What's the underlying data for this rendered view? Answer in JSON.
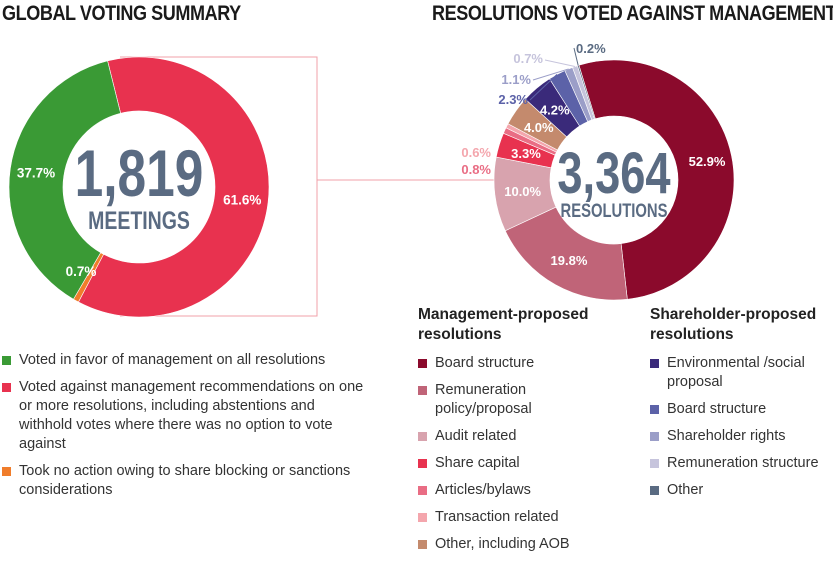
{
  "headings": {
    "left": "GLOBAL VOTING SUMMARY",
    "right": "RESOLUTIONS VOTED AGAINST MANAGEMENT"
  },
  "centers": {
    "left": {
      "number": "1,819",
      "unit": "MEETINGS"
    },
    "right": {
      "number": "3,364",
      "unit": "RESOLUTIONS"
    }
  },
  "left_legend": [
    {
      "label": "Voted in favor of management on all resolutions",
      "color": "#3a9a35"
    },
    {
      "label": "Voted against management recommendations on one or more resolutions, including abstentions and withhold votes where there was no option to vote against",
      "color": "#e8324f"
    },
    {
      "label": "Took no action owing to share blocking or sanctions considerations",
      "color": "#f07d2b"
    }
  ],
  "mgmt_legend": {
    "title": "Management-proposed resolutions",
    "items": [
      {
        "label": "Board structure",
        "color": "#8b0a2c"
      },
      {
        "label": "Remuneration policy/proposal",
        "color": "#c06478"
      },
      {
        "label": "Audit related",
        "color": "#d8a3ae"
      },
      {
        "label": "Share capital",
        "color": "#e8324f"
      },
      {
        "label": "Articles/bylaws",
        "color": "#e96d84"
      },
      {
        "label": "Transaction related",
        "color": "#f4a6ad"
      },
      {
        "label": "Other, including AOB",
        "color": "#c48a6d"
      }
    ]
  },
  "shr_legend": {
    "title": "Shareholder-proposed resolutions",
    "items": [
      {
        "label": "Environmental /social proposal",
        "color": "#3a2a7a"
      },
      {
        "label": "Board structure",
        "color": "#5c62a8"
      },
      {
        "label": "Shareholder rights",
        "color": "#9b9ec8"
      },
      {
        "label": "Remuneration structure",
        "color": "#c6c4dc"
      },
      {
        "label": "Other",
        "color": "#5a6b82"
      }
    ]
  },
  "chart_data": [
    {
      "type": "pie",
      "title": "GLOBAL VOTING SUMMARY",
      "categories": [
        "Voted in favor of management on all resolutions",
        "Voted against management recommendations on one or more resolutions",
        "Took no action owing to share blocking or sanctions considerations"
      ],
      "values": [
        37.7,
        61.6,
        0.7
      ],
      "labels": [
        "37.7%",
        "61.6%",
        "0.7%"
      ],
      "colors": [
        "#3a9a35",
        "#e8324f",
        "#f07d2b"
      ]
    },
    {
      "type": "pie",
      "title": "RESOLUTIONS VOTED AGAINST MANAGEMENT",
      "categories": [
        "Board structure",
        "Remuneration policy/proposal",
        "Audit related",
        "Share capital",
        "Articles/bylaws",
        "Transaction related",
        "Other, including AOB",
        "Environmental /social proposal",
        "Board structure (shareholder)",
        "Shareholder rights",
        "Remuneration structure",
        "Other"
      ],
      "values": [
        52.9,
        19.8,
        10.0,
        3.3,
        0.8,
        0.6,
        4.0,
        4.2,
        2.3,
        1.1,
        0.7,
        0.2
      ],
      "labels": [
        "52.9%",
        "19.8%",
        "10.0%",
        "3.3%",
        "0.8%",
        "0.6%",
        "4.0%",
        "4.2%",
        "2.3%",
        "1.1%",
        "0.7%",
        "0.2%"
      ],
      "colors": [
        "#8b0a2c",
        "#c06478",
        "#d8a3ae",
        "#e8324f",
        "#e96d84",
        "#f4a6ad",
        "#c48a6d",
        "#3a2a7a",
        "#5c62a8",
        "#9b9ec8",
        "#c6c4dc",
        "#5a6b82"
      ]
    }
  ]
}
